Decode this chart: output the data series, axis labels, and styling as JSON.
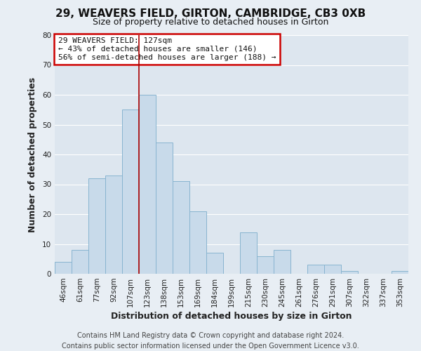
{
  "title": "29, WEAVERS FIELD, GIRTON, CAMBRIDGE, CB3 0XB",
  "subtitle": "Size of property relative to detached houses in Girton",
  "xlabel": "Distribution of detached houses by size in Girton",
  "ylabel": "Number of detached properties",
  "bar_labels": [
    "46sqm",
    "61sqm",
    "77sqm",
    "92sqm",
    "107sqm",
    "123sqm",
    "138sqm",
    "153sqm",
    "169sqm",
    "184sqm",
    "199sqm",
    "215sqm",
    "230sqm",
    "245sqm",
    "261sqm",
    "276sqm",
    "291sqm",
    "307sqm",
    "322sqm",
    "337sqm",
    "353sqm"
  ],
  "bar_values": [
    4,
    8,
    32,
    33,
    55,
    60,
    44,
    31,
    21,
    7,
    0,
    14,
    6,
    8,
    0,
    3,
    3,
    1,
    0,
    0,
    1
  ],
  "bar_color": "#c8daea",
  "bar_edge_color": "#88b4d0",
  "vline_x": 4.5,
  "vline_color": "#aa0000",
  "ylim": [
    0,
    80
  ],
  "yticks": [
    0,
    10,
    20,
    30,
    40,
    50,
    60,
    70,
    80
  ],
  "annotation_line1": "29 WEAVERS FIELD: 127sqm",
  "annotation_line2": "← 43% of detached houses are smaller (146)",
  "annotation_line3": "56% of semi-detached houses are larger (188) →",
  "annotation_box_color": "#ffffff",
  "annotation_box_edge": "#cc0000",
  "footer_line1": "Contains HM Land Registry data © Crown copyright and database right 2024.",
  "footer_line2": "Contains public sector information licensed under the Open Government Licence v3.0.",
  "background_color": "#e8eef4",
  "plot_bg_color": "#dde6ef",
  "grid_color": "#ffffff",
  "title_fontsize": 11,
  "subtitle_fontsize": 9,
  "axis_label_fontsize": 9,
  "tick_fontsize": 7.5,
  "annotation_fontsize": 8,
  "footer_fontsize": 7
}
